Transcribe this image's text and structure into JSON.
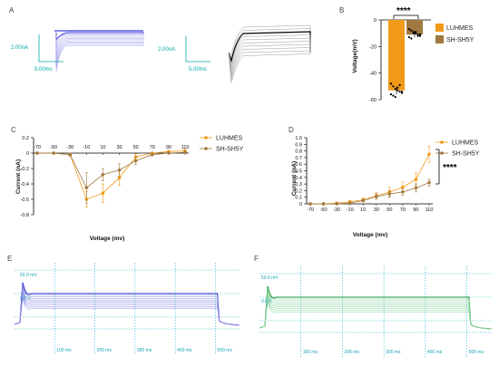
{
  "panels": {
    "A": "A",
    "B": "B",
    "C": "C",
    "D": "D",
    "E": "E",
    "F": "F"
  },
  "colors": {
    "luhmes": "#f29a1a",
    "shsy5y": "#a07840",
    "trace_a": "#3a3ae0",
    "trace_e": "#2a2ad0",
    "trace_f": "#1a9a3a",
    "grid": "#22b5c8"
  },
  "panel_a": {
    "scale1_v": "2.00nA",
    "scale1_h": "5.00ms",
    "scale2_v": "2.00nA",
    "scale2_h": "5.00ms"
  },
  "chart_data": [
    {
      "panel": "B",
      "type": "bar",
      "ylabel": "Voltage(mV)",
      "yticks": [
        0,
        -20,
        -40,
        -60
      ],
      "ylim": [
        -60,
        0
      ],
      "categories": [
        "LUHMES",
        "SH-SH5Y"
      ],
      "values": [
        -53,
        -11
      ],
      "errors": [
        3,
        2
      ],
      "points": [
        [
          -48,
          -50,
          -52,
          -53,
          -54,
          -55,
          -56,
          -57,
          -58,
          -51,
          -49,
          -54
        ],
        [
          -7,
          -8,
          -9,
          -10,
          -11,
          -12,
          -13,
          -14,
          -10,
          -9,
          -12,
          -11
        ]
      ],
      "legend": [
        "LUHMES",
        "SH-SH5Y"
      ],
      "significance": "****"
    },
    {
      "panel": "C",
      "type": "line",
      "xlabel": "Voltage (mv)",
      "ylabel": "Current (nA)",
      "xticks": [
        "-70",
        "-50",
        "-30",
        "-10",
        "10",
        "30",
        "50",
        "70",
        "90",
        "110"
      ],
      "yticks": [
        "0.2",
        "0",
        "-0.2",
        "-0.4",
        "-0.6",
        "-0.8"
      ],
      "x": [
        -70,
        -50,
        -30,
        -10,
        10,
        30,
        50,
        70,
        90,
        110
      ],
      "ylim": [
        -0.8,
        0.2
      ],
      "series": [
        {
          "name": "LUHMES",
          "values": [
            0,
            0,
            -0.02,
            -0.6,
            -0.52,
            -0.32,
            -0.05,
            0,
            0.02,
            0.03
          ],
          "errors": [
            0.01,
            0.01,
            0.02,
            0.1,
            0.12,
            0.1,
            0.04,
            0.01,
            0.01,
            0.02
          ]
        },
        {
          "name": "SH-SH5Y",
          "values": [
            0,
            0,
            -0.02,
            -0.45,
            -0.28,
            -0.22,
            -0.1,
            -0.02,
            0,
            0.01
          ],
          "errors": [
            0.01,
            0.01,
            0.02,
            0.2,
            0.08,
            0.08,
            0.05,
            0.01,
            0.01,
            0.01
          ]
        }
      ]
    },
    {
      "panel": "D",
      "type": "line",
      "xlabel": "Voltage (mv)",
      "ylabel": "Current (nA)",
      "xticks": [
        "-70",
        "-50",
        "-30",
        "-10",
        "10",
        "30",
        "50",
        "70",
        "90",
        "110"
      ],
      "yticks": [
        "0",
        "0.1",
        "0.2",
        "0.3",
        "0.4",
        "0.5",
        "0.6",
        "0.7",
        "0.8",
        "0.9",
        "1.0"
      ],
      "x": [
        -70,
        -50,
        -30,
        -10,
        10,
        30,
        50,
        70,
        90,
        110
      ],
      "ylim": [
        0,
        1.0
      ],
      "series": [
        {
          "name": "LUHMES",
          "values": [
            0,
            0,
            0.01,
            0.03,
            0.06,
            0.12,
            0.18,
            0.25,
            0.37,
            0.75
          ],
          "errors": [
            0.01,
            0.01,
            0.01,
            0.02,
            0.03,
            0.05,
            0.07,
            0.08,
            0.1,
            0.12
          ]
        },
        {
          "name": "SH-SH5Y",
          "values": [
            0,
            0,
            0,
            0.01,
            0.05,
            0.11,
            0.15,
            0.18,
            0.24,
            0.32
          ],
          "errors": [
            0.01,
            0.01,
            0.01,
            0.01,
            0.02,
            0.04,
            0.05,
            0.05,
            0.06,
            0.05
          ]
        }
      ],
      "significance": "****"
    }
  ],
  "panel_e": {
    "ylabel_top": "50.0 mV",
    "ylabel_mid": "0.0 V",
    "xticks": [
      "100 ms",
      "200 ms",
      "300 ms",
      "400 ms",
      "500 ms"
    ]
  },
  "panel_f": {
    "ylabel_top": "50.0 mV",
    "ylabel_mid": "0.0 V",
    "xticks": [
      "100 ms",
      "200 ms",
      "300 ms",
      "400 ms",
      "500 ms"
    ]
  }
}
